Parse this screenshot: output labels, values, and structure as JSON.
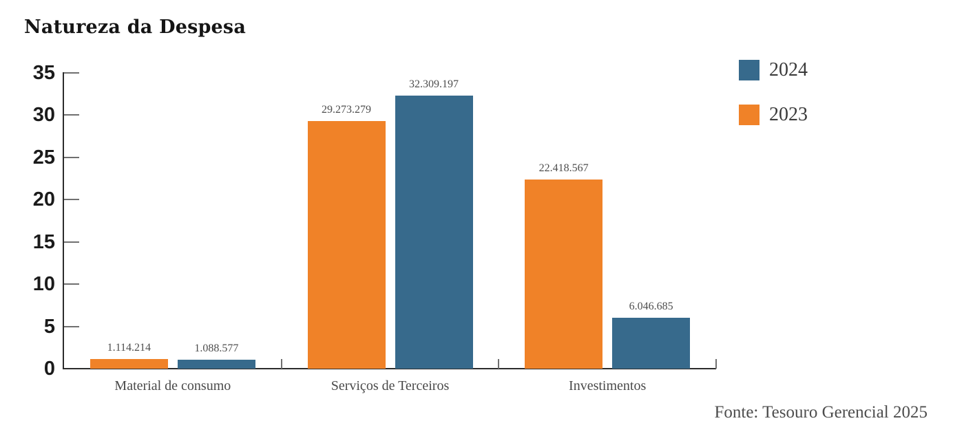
{
  "title": "Natureza da Despesa",
  "source_note": "Fonte: Tesouro Gerencial 2025",
  "legend": [
    {
      "label": "2024",
      "color": "#376A8C"
    },
    {
      "label": "2023",
      "color": "#F08228"
    }
  ],
  "colors": {
    "series_2023": "#F08228",
    "series_2024": "#376A8C",
    "axis": "#2b2b2b",
    "tick": "#6f6f6f",
    "text_gray": "#4d4d4d",
    "title_text": "#151515"
  },
  "chart_data": {
    "type": "bar",
    "title": "Natureza da Despesa",
    "categories": [
      "Material de consumo",
      "Serviços de Terceiros",
      "Investimentos"
    ],
    "series": [
      {
        "name": "2023",
        "color": "#F08228",
        "values": [
          1114214,
          29273279,
          22418567
        ]
      },
      {
        "name": "2024",
        "color": "#376A8C",
        "values": [
          1088577,
          32309197,
          6046685
        ]
      }
    ],
    "bar_labels": [
      "1.114.214",
      "1.088.577",
      "29.273.279",
      "32.309.197",
      "22.418.567",
      "6.046.685"
    ],
    "value_scale": 1000000,
    "ylim": [
      0,
      35
    ],
    "ytick_step": 5,
    "yticks": [
      0,
      5,
      10,
      15,
      20,
      25,
      30,
      35
    ],
    "xlabel": "",
    "ylabel": "",
    "grid": false,
    "legend_position": "top-right",
    "source": "Fonte: Tesouro Gerencial 2025"
  }
}
